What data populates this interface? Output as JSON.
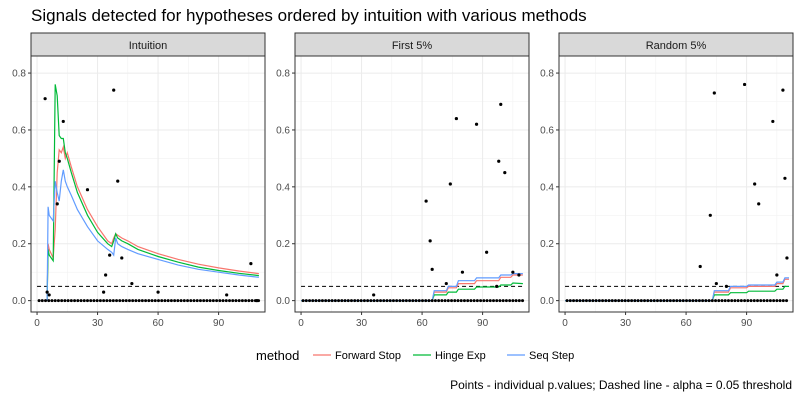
{
  "chart_data": {
    "type": "line",
    "title": "Signals detected for hypotheses ordered by intuition with various methods",
    "caption": "Points - individual p.values; Dashed line - alpha = 0.05 threshold",
    "legend_title": "method",
    "legend_position": "bottom",
    "xlim": [
      -3,
      113
    ],
    "ylim": [
      -0.04,
      0.86
    ],
    "x_ticks": [
      0,
      30,
      60,
      90
    ],
    "y_ticks": [
      0.0,
      0.2,
      0.4,
      0.6,
      0.8
    ],
    "y_tick_labels": [
      "0.0",
      "0.2",
      "0.4",
      "0.6",
      "0.8"
    ],
    "alpha_threshold": 0.05,
    "grid": true,
    "series_styles": [
      {
        "name": "Forward Stop",
        "color": "#F8766D"
      },
      {
        "name": "Hinge Exp",
        "color": "#00BA38"
      },
      {
        "name": "Seq Step",
        "color": "#619CFF"
      }
    ],
    "panels": [
      {
        "strip_label": "Intuition",
        "points": [
          [
            4,
            0.71
          ],
          [
            5,
            0.03
          ],
          [
            6,
            0.02
          ],
          [
            10,
            0.34
          ],
          [
            11,
            0.49
          ],
          [
            13,
            0.63
          ],
          [
            25,
            0.39
          ],
          [
            33,
            0.03
          ],
          [
            34,
            0.09
          ],
          [
            36,
            0.16
          ],
          [
            38,
            0.74
          ],
          [
            40,
            0.42
          ],
          [
            42,
            0.15
          ],
          [
            47,
            0.06
          ],
          [
            60,
            0.03
          ],
          [
            94,
            0.02
          ],
          [
            106,
            0.13
          ],
          [
            109,
            0.0
          ]
        ],
        "series": [
          {
            "name": "Forward Stop",
            "x": [
              5,
              5.5,
              6,
              8,
              9,
              10,
              11,
              12,
              13,
              14,
              15,
              17,
              20,
              25,
              30,
              35,
              37,
              38,
              39,
              40,
              42,
              45,
              50,
              60,
              70,
              80,
              90,
              100,
              110
            ],
            "y": [
              0,
              0.2,
              0.18,
              0.15,
              0.25,
              0.45,
              0.53,
              0.52,
              0.54,
              0.5,
              0.52,
              0.47,
              0.4,
              0.32,
              0.26,
              0.21,
              0.2,
              0.22,
              0.235,
              0.23,
              0.22,
              0.21,
              0.19,
              0.165,
              0.145,
              0.128,
              0.115,
              0.104,
              0.095
            ]
          },
          {
            "name": "Hinge Exp",
            "x": [
              5,
              5.5,
              6,
              8,
              9,
              10,
              11,
              12,
              13,
              14,
              15,
              17,
              20,
              25,
              30,
              35,
              37,
              38,
              39,
              40,
              42,
              45,
              50,
              60,
              70,
              80,
              90,
              100,
              110
            ],
            "y": [
              0,
              0.18,
              0.16,
              0.14,
              0.76,
              0.72,
              0.58,
              0.57,
              0.57,
              0.52,
              0.5,
              0.45,
              0.38,
              0.3,
              0.24,
              0.2,
              0.19,
              0.21,
              0.235,
              0.22,
              0.21,
              0.2,
              0.18,
              0.155,
              0.135,
              0.118,
              0.106,
              0.096,
              0.088
            ]
          },
          {
            "name": "Seq Step",
            "x": [
              5,
              5.5,
              6,
              8,
              9,
              10,
              11,
              12,
              13,
              14,
              15,
              17,
              20,
              25,
              30,
              35,
              37,
              38,
              39,
              40,
              42,
              45,
              50,
              60,
              70,
              80,
              90,
              100,
              110
            ],
            "y": [
              0,
              0.33,
              0.3,
              0.28,
              0.42,
              0.38,
              0.35,
              0.42,
              0.46,
              0.42,
              0.4,
              0.37,
              0.32,
              0.26,
              0.21,
              0.18,
              0.17,
              0.16,
              0.22,
              0.2,
              0.19,
              0.18,
              0.165,
              0.145,
              0.125,
              0.11,
              0.1,
              0.09,
              0.082
            ]
          }
        ]
      },
      {
        "strip_label": "First 5%",
        "points": [
          [
            36,
            0.02
          ],
          [
            62,
            0.35
          ],
          [
            64,
            0.21
          ],
          [
            65,
            0.11
          ],
          [
            72,
            0.06
          ],
          [
            74,
            0.41
          ],
          [
            77,
            0.64
          ],
          [
            80,
            0.1
          ],
          [
            87,
            0.62
          ],
          [
            92,
            0.17
          ],
          [
            97,
            0.05
          ],
          [
            99,
            0.69
          ],
          [
            101,
            0.45
          ],
          [
            105,
            0.1
          ],
          [
            108,
            0.09
          ],
          [
            98,
            0.49
          ]
        ],
        "series": [
          {
            "name": "Forward Stop",
            "x": [
              0,
              65,
              66,
              72,
              73,
              77,
              78,
              86,
              87,
              98,
              99,
              104,
              105,
              110
            ],
            "y": [
              0,
              0,
              0.03,
              0.03,
              0.045,
              0.045,
              0.06,
              0.06,
              0.07,
              0.07,
              0.082,
              0.082,
              0.09,
              0.09
            ]
          },
          {
            "name": "Hinge Exp",
            "x": [
              0,
              65,
              66,
              72,
              73,
              77,
              78,
              86,
              87,
              98,
              99,
              104,
              105,
              110
            ],
            "y": [
              0,
              0,
              0.02,
              0.02,
              0.03,
              0.03,
              0.04,
              0.04,
              0.048,
              0.048,
              0.055,
              0.055,
              0.062,
              0.06
            ]
          },
          {
            "name": "Seq Step",
            "x": [
              0,
              65,
              66,
              72,
              73,
              77,
              78,
              86,
              87,
              98,
              99,
              104,
              105,
              110
            ],
            "y": [
              0,
              0,
              0.035,
              0.035,
              0.05,
              0.05,
              0.07,
              0.07,
              0.08,
              0.08,
              0.09,
              0.09,
              0.095,
              0.095
            ]
          }
        ]
      },
      {
        "strip_label": "Random 5%",
        "points": [
          [
            67,
            0.12
          ],
          [
            72,
            0.3
          ],
          [
            74,
            0.73
          ],
          [
            75,
            0.06
          ],
          [
            80,
            0.05
          ],
          [
            89,
            0.76
          ],
          [
            94,
            0.41
          ],
          [
            96,
            0.34
          ],
          [
            103,
            0.63
          ],
          [
            105,
            0.09
          ],
          [
            108,
            0.74
          ],
          [
            109,
            0.43
          ],
          [
            110,
            0.15
          ]
        ],
        "series": [
          {
            "name": "Forward Stop",
            "x": [
              0,
              73,
              74,
              81,
              82,
              90,
              91,
              104,
              105,
              108,
              109,
              111
            ],
            "y": [
              0,
              0,
              0.03,
              0.03,
              0.045,
              0.045,
              0.05,
              0.05,
              0.06,
              0.06,
              0.075,
              0.075
            ]
          },
          {
            "name": "Hinge Exp",
            "x": [
              0,
              73,
              74,
              81,
              82,
              90,
              91,
              104,
              105,
              108,
              109,
              111
            ],
            "y": [
              0,
              0,
              0.02,
              0.02,
              0.028,
              0.028,
              0.033,
              0.033,
              0.04,
              0.04,
              0.05,
              0.05
            ]
          },
          {
            "name": "Seq Step",
            "x": [
              0,
              73,
              74,
              81,
              82,
              90,
              91,
              104,
              105,
              108,
              109,
              111
            ],
            "y": [
              0,
              0,
              0.035,
              0.035,
              0.05,
              0.05,
              0.055,
              0.055,
              0.065,
              0.065,
              0.08,
              0.08
            ]
          }
        ]
      }
    ]
  }
}
